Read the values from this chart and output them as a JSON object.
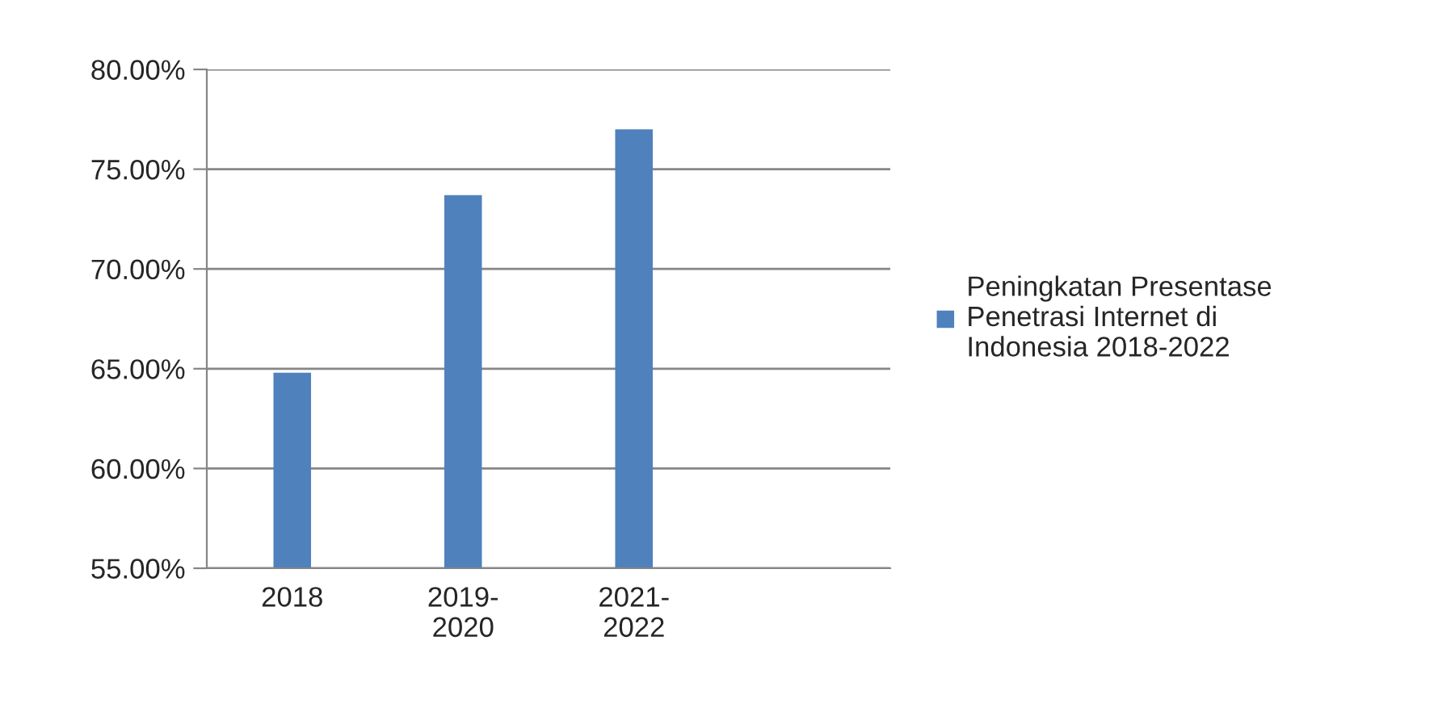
{
  "chart_data": {
    "type": "bar",
    "categories": [
      "2018",
      "2019-2020",
      "2021-2022",
      null
    ],
    "series": [
      {
        "name": "Peningkatan Presentase Penetrasi Internet di Indonesia 2018-2022",
        "color": "#4f81bd",
        "values": [
          64.8,
          73.7,
          77.0,
          null
        ]
      }
    ],
    "ylim": [
      55,
      80
    ],
    "yticks": [
      {
        "value": 55,
        "label": "55.00%"
      },
      {
        "value": 60,
        "label": "60.00%"
      },
      {
        "value": 65,
        "label": "65.00%"
      },
      {
        "value": 70,
        "label": "70.00%"
      },
      {
        "value": 75,
        "label": "75.00%"
      },
      {
        "value": 80,
        "label": "80.00%"
      }
    ],
    "grid": "y",
    "legend": "right"
  }
}
